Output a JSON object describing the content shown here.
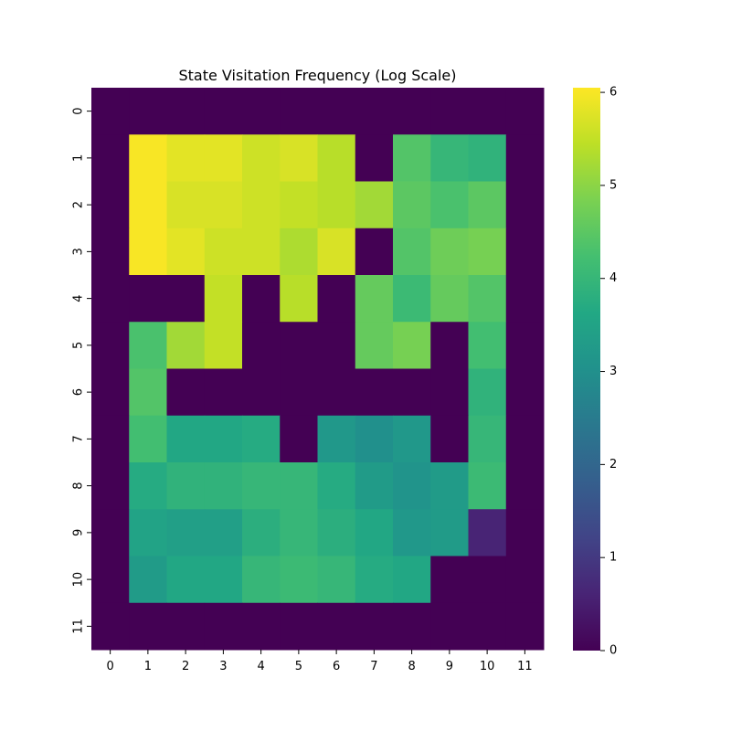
{
  "chart_data": {
    "type": "heatmap",
    "title": "State Visitation Frequency (Log Scale)",
    "xlabel": "",
    "ylabel": "",
    "x_ticks": [
      "0",
      "1",
      "2",
      "3",
      "4",
      "5",
      "6",
      "7",
      "8",
      "9",
      "10",
      "11"
    ],
    "y_ticks": [
      "0",
      "1",
      "2",
      "3",
      "4",
      "5",
      "6",
      "7",
      "8",
      "9",
      "10",
      "11"
    ],
    "colormap": "viridis",
    "colorbar": {
      "vmin": 0,
      "vmax": 6.05,
      "ticks": [
        "0",
        "1",
        "2",
        "3",
        "4",
        "5",
        "6"
      ]
    },
    "values": [
      [
        0,
        0,
        0,
        0,
        0,
        0,
        0,
        0,
        0,
        0,
        0,
        0
      ],
      [
        0,
        6.0,
        5.8,
        5.8,
        5.6,
        5.7,
        5.4,
        0,
        4.4,
        4.0,
        3.9,
        0
      ],
      [
        0,
        6.0,
        5.7,
        5.7,
        5.6,
        5.5,
        5.4,
        5.2,
        4.5,
        4.3,
        4.5,
        0
      ],
      [
        0,
        6.0,
        5.8,
        5.6,
        5.6,
        5.3,
        5.7,
        0,
        4.4,
        4.7,
        4.8,
        0
      ],
      [
        0,
        0,
        0,
        5.5,
        0,
        5.4,
        0,
        4.6,
        4.1,
        4.6,
        4.4,
        0
      ],
      [
        0,
        4.3,
        5.2,
        5.5,
        0,
        0,
        0,
        4.6,
        4.8,
        0,
        4.2,
        0
      ],
      [
        0,
        4.4,
        0,
        0,
        0,
        0,
        0,
        0,
        0,
        0,
        3.9,
        0
      ],
      [
        0,
        4.2,
        3.6,
        3.6,
        3.7,
        0,
        3.2,
        3.0,
        3.2,
        0,
        4.0,
        0
      ],
      [
        0,
        3.7,
        3.9,
        3.9,
        4.0,
        4.0,
        3.7,
        3.3,
        3.1,
        3.3,
        4.1,
        0
      ],
      [
        0,
        3.5,
        3.4,
        3.4,
        3.8,
        4.0,
        3.8,
        3.6,
        3.2,
        3.3,
        0.6,
        0
      ],
      [
        0,
        3.3,
        3.6,
        3.6,
        4.0,
        4.1,
        4.0,
        3.7,
        3.6,
        0,
        0,
        0
      ],
      [
        0,
        0,
        0,
        0,
        0,
        0,
        0,
        0,
        0,
        0,
        0,
        0
      ]
    ]
  }
}
